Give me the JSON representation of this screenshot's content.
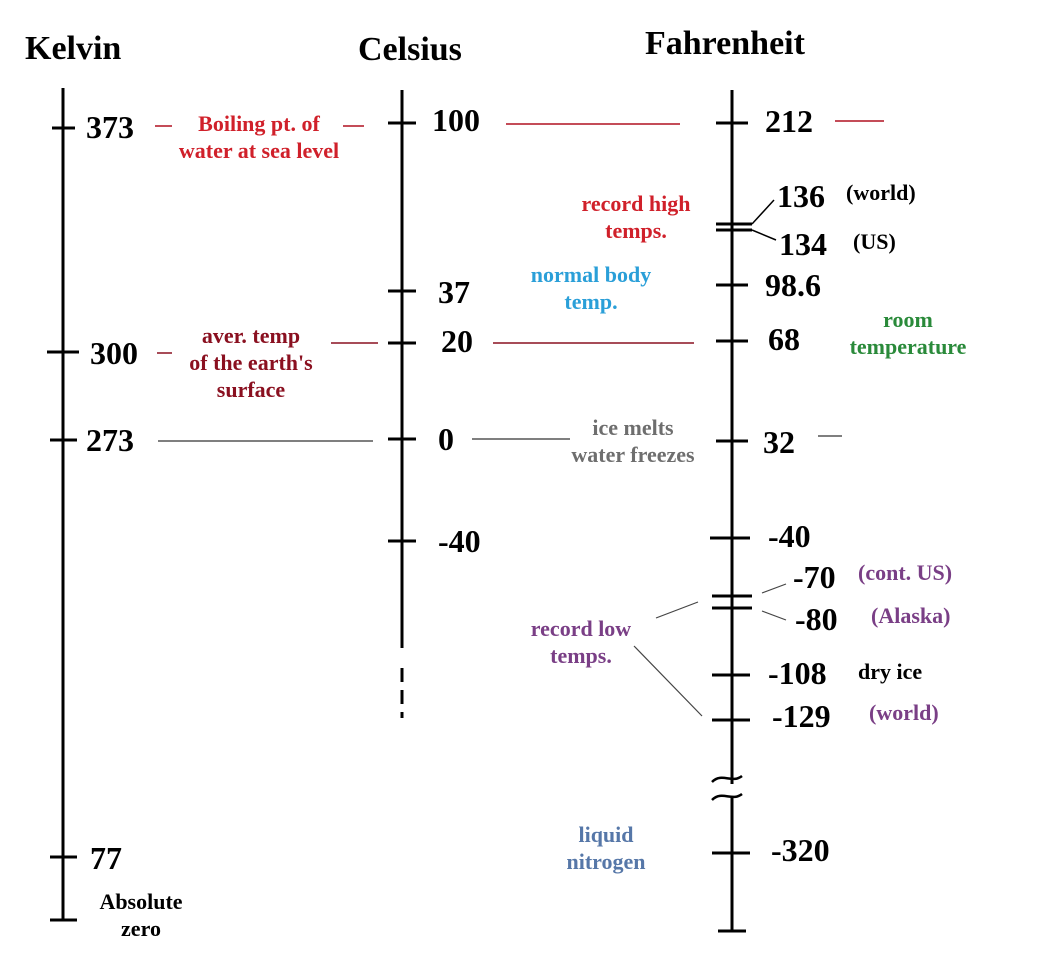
{
  "headers": {
    "kelvin": "Kelvin",
    "celsius": "Celsius",
    "fahrenheit": "Fahrenheit"
  },
  "kelvin_ticks": {
    "k373": "373",
    "k300": "300",
    "k273": "273",
    "k77": "77"
  },
  "celsius_ticks": {
    "c100": "100",
    "c37": "37",
    "c20": "20",
    "c0": "0",
    "cm40": "-40"
  },
  "fahrenheit_ticks": {
    "f212": "212",
    "f136": "136",
    "f134": "134",
    "f98": "98.6",
    "f68": "68",
    "f32": "32",
    "fm40": "-40",
    "fm70": "-70",
    "fm80": "-80",
    "fm108": "-108",
    "fm129": "-129",
    "fm320": "-320"
  },
  "annotations": {
    "boiling_l1": "Boiling pt. of",
    "boiling_l2": "water at sea level",
    "record_high_l1": "record high",
    "record_high_l2": "temps.",
    "world_high": "(world)",
    "us_high": "(US)",
    "body_l1": "normal body",
    "body_l2": "temp.",
    "earth_l1": "aver. temp",
    "earth_l2": "of the earth's",
    "earth_l3": "surface",
    "room_l1": "room",
    "room_l2": "temperature",
    "ice_l1": "ice melts",
    "ice_l2": "water freezes",
    "cont_us": "(cont. US)",
    "alaska": "(Alaska)",
    "record_low_l1": "record low",
    "record_low_l2": "temps.",
    "dry_ice": "dry ice",
    "world_low": "(world)",
    "nitrogen_l1": "liquid",
    "nitrogen_l2": "nitrogen",
    "absolute_l1": "Absolute",
    "absolute_l2": "zero"
  },
  "colors": {
    "boiling": "#d0202a",
    "earth": "#8a1020",
    "body": "#2a9fd8",
    "room": "#2a8a3a",
    "ice": "#6e6e6e",
    "record_low": "#7a3f86",
    "nitrogen": "#5677a8"
  }
}
